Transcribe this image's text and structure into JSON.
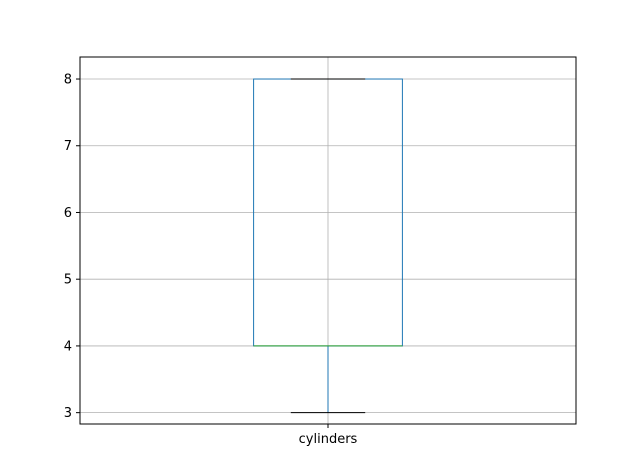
{
  "chart_data": {
    "type": "box",
    "title": "",
    "xlabel": "",
    "ylabel": "",
    "categories": [
      "cylinders"
    ],
    "series": [
      {
        "values": {
          "whisker_low": 3,
          "q1": 4,
          "median": 4,
          "q3": 8,
          "whisker_high": 8
        }
      }
    ],
    "yticks": [
      3,
      4,
      5,
      6,
      7,
      8
    ],
    "ylim": [
      2.83,
      8.33
    ],
    "grid": true,
    "legend": "none",
    "colors": {
      "box": "#1f77b4",
      "median": "#2ca02c",
      "whisker": "#1f77b4",
      "cap": "#000000",
      "grid": "#b0b0b0",
      "axes": "#000000"
    }
  }
}
